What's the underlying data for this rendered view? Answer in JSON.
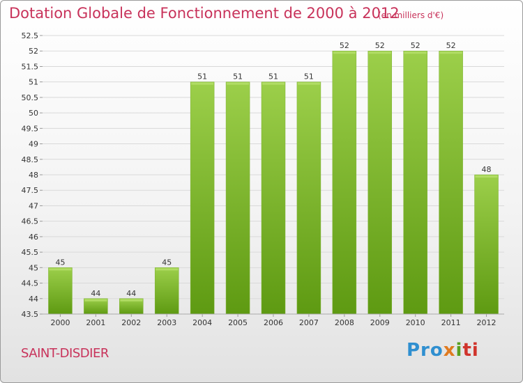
{
  "header": {
    "title": "Dotation Globale de Fonctionnement de 2000 à 2012",
    "unit_note": "(en milliers d'€)"
  },
  "footer": {
    "commune": "SAINT-DISDIER",
    "logo_text": [
      "Pro",
      "x",
      "i",
      "ti"
    ]
  },
  "colors": {
    "title": "#c8325a",
    "bar_top": "#9ccf4a",
    "bar_bottom": "#5e9a12",
    "grid": "#d9d9d9",
    "axis_text": "#333333"
  },
  "chart_data": {
    "type": "bar",
    "title": "Dotation Globale de Fonctionnement de 2000 à 2012",
    "subtitle": "(en milliers d'€)",
    "xlabel": "",
    "ylabel": "",
    "categories": [
      "2000",
      "2001",
      "2002",
      "2003",
      "2004",
      "2005",
      "2006",
      "2007",
      "2008",
      "2009",
      "2010",
      "2011",
      "2012"
    ],
    "values": [
      45,
      44,
      44,
      45,
      51,
      51,
      51,
      51,
      52,
      52,
      52,
      52,
      48
    ],
    "data_labels": [
      "45",
      "44",
      "44",
      "45",
      "51",
      "51",
      "51",
      "51",
      "52",
      "52",
      "52",
      "52",
      "48"
    ],
    "ylim": [
      43.5,
      52.5
    ],
    "yticks": [
      "43.5",
      "44",
      "44.5",
      "45",
      "45.5",
      "46",
      "46.5",
      "47",
      "47.5",
      "48",
      "48.5",
      "49",
      "49.5",
      "50",
      "50.5",
      "51",
      "51.5",
      "52",
      "52.5"
    ],
    "grid": true,
    "legend": "none"
  }
}
